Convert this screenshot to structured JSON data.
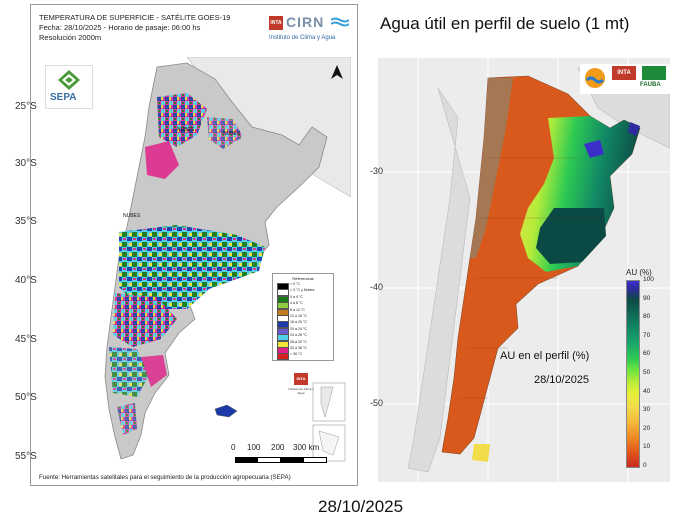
{
  "left_panel": {
    "header_lines": [
      "TEMPERATURA DE SUPERFICIE - SATÉLITE GOES-19",
      "Fecha: 28/10/2025 - Horario de pasaje: 06:00 hs",
      "Resolución 2000m"
    ],
    "cirn_logo": {
      "badge": "INTA",
      "name": "CIRN",
      "subtitle": "Instituto de Clima y Agua"
    },
    "sepa_logo": "SEPA",
    "lat_labels": [
      "25°S",
      "30°S",
      "35°S",
      "40°S",
      "45°S",
      "50°S",
      "55°S"
    ],
    "cloud_labels": [
      "NUBES",
      "NUBES",
      "NUBES"
    ],
    "legend": {
      "title": "Referencias",
      "items": [
        {
          "label": "> 0 °C",
          "color": "#000000"
        },
        {
          "label": "< 0 °C y Nubes",
          "color": "#ffffff"
        },
        {
          "label": "0 a 4 °C",
          "color": "#1a7a1a"
        },
        {
          "label": "4 a 8 °C",
          "color": "#8fcb3a"
        },
        {
          "label": "8 a 12 °C",
          "color": "#c57a22"
        },
        {
          "label": "12 a 16 °C",
          "color": "#ffffff"
        },
        {
          "label": "16 a 20 °C",
          "color": "#1a3aa8"
        },
        {
          "label": "20 a 24 °C",
          "color": "#6a5acd"
        },
        {
          "label": "24 a 28 °C",
          "color": "#4fd0e8"
        },
        {
          "label": "28 a 32 °C",
          "color": "#f2e63a"
        },
        {
          "label": "32 a 36 °C",
          "color": "#e0218a"
        },
        {
          "label": "> 36 °C",
          "color": "#d81e1e"
        }
      ]
    },
    "inta_small": {
      "badge": "INTA",
      "caption": "Instituto de Clima y Agua"
    },
    "scale_ticks": [
      "0",
      "100",
      "200",
      "300 km"
    ],
    "footer": "Fuente: Herramientas satelitales para el seguimiento de la producción agropecuaria (SEPA)"
  },
  "right_panel": {
    "title": "Agua útil en perfil de suelo (1 mt)",
    "lat_labels": [
      "-30",
      "-40",
      "-50"
    ],
    "logos": {
      "inta": "INTA",
      "fauba": "FAUBA"
    },
    "colorbar_title": "AU (%)",
    "colorbar_ticks": [
      "100",
      "90",
      "80",
      "70",
      "60",
      "50",
      "40",
      "30",
      "20",
      "10",
      "0"
    ],
    "annotation_label": "AU en el perfil (%)",
    "annotation_date": "28/10/2025"
  },
  "bottom_date": "28/10/2025",
  "colors": {
    "soil_dry": "#d9591c",
    "soil_wet": "#0b4a44",
    "saturated": "#3a2fc8",
    "mountain_brown": "#a07a5a",
    "land_grey": "#c9c9c9"
  }
}
